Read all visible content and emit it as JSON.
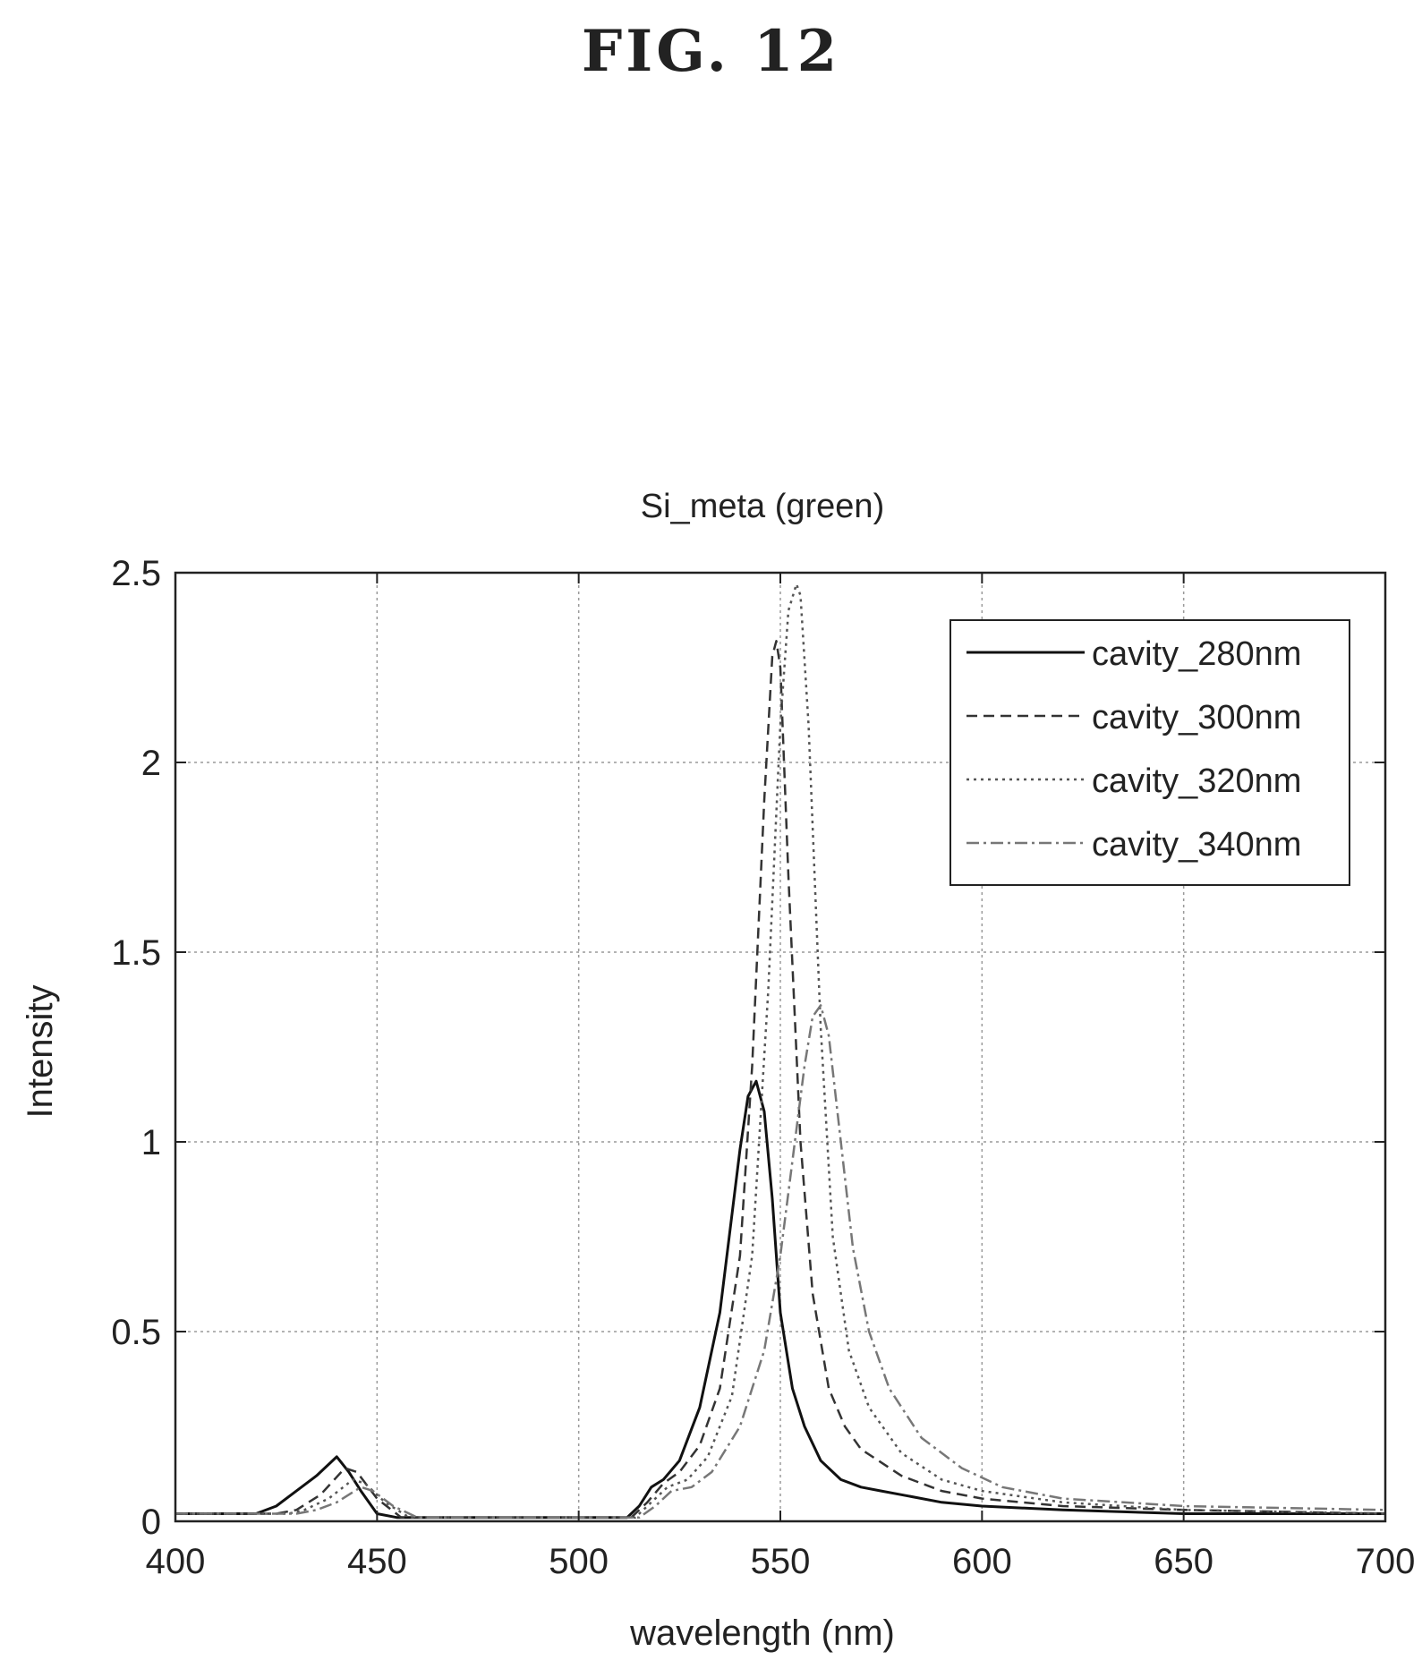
{
  "figure_label": "FIG. 12",
  "chart_data": {
    "type": "line",
    "title": "Si_meta (green)",
    "xlabel": "wavelength (nm)",
    "ylabel": "Intensity",
    "xlim": [
      400,
      700
    ],
    "ylim": [
      0,
      2.5
    ],
    "xticks": [
      400,
      450,
      500,
      550,
      600,
      650,
      700
    ],
    "xtick_labels": [
      "400",
      "450",
      "500",
      "550",
      "600",
      "650",
      "700"
    ],
    "yticks": [
      0,
      0.5,
      1,
      1.5,
      2,
      2.5
    ],
    "ytick_labels": [
      "0",
      "0.5",
      "1",
      "1.5",
      "2",
      "2.5"
    ],
    "grid": true,
    "legend_position": "top-right",
    "series": [
      {
        "name": "cavity_280nm",
        "style": "solid",
        "color": "#111111",
        "x": [
          400,
          420,
          425,
          430,
          435,
          440,
          443,
          446,
          450,
          455,
          500,
          512,
          515,
          518,
          521,
          525,
          530,
          535,
          540,
          542,
          544,
          546,
          548,
          550,
          553,
          556,
          560,
          565,
          570,
          575,
          580,
          590,
          600,
          620,
          650,
          700
        ],
        "y": [
          0.02,
          0.02,
          0.04,
          0.08,
          0.12,
          0.17,
          0.13,
          0.08,
          0.02,
          0.01,
          0.01,
          0.01,
          0.04,
          0.09,
          0.11,
          0.16,
          0.3,
          0.55,
          0.98,
          1.12,
          1.16,
          1.08,
          0.85,
          0.55,
          0.35,
          0.25,
          0.16,
          0.11,
          0.09,
          0.08,
          0.07,
          0.05,
          0.04,
          0.03,
          0.02,
          0.02
        ]
      },
      {
        "name": "cavity_300nm",
        "style": "dashed",
        "color": "#333333",
        "x": [
          400,
          425,
          430,
          436,
          442,
          445,
          450,
          456,
          500,
          513,
          517,
          521,
          525,
          530,
          535,
          540,
          543,
          546,
          548,
          549,
          550,
          552,
          555,
          558,
          562,
          566,
          570,
          580,
          590,
          600,
          620,
          650,
          700
        ],
        "y": [
          0.02,
          0.02,
          0.03,
          0.07,
          0.14,
          0.13,
          0.06,
          0.01,
          0.01,
          0.01,
          0.05,
          0.1,
          0.13,
          0.2,
          0.35,
          0.7,
          1.2,
          1.9,
          2.28,
          2.32,
          2.25,
          1.7,
          1.0,
          0.6,
          0.35,
          0.25,
          0.19,
          0.12,
          0.08,
          0.06,
          0.04,
          0.03,
          0.02
        ]
      },
      {
        "name": "cavity_320nm",
        "style": "dotted",
        "color": "#555555",
        "x": [
          400,
          428,
          432,
          438,
          444,
          447,
          452,
          458,
          500,
          514,
          518,
          522,
          527,
          532,
          538,
          543,
          547,
          550,
          552,
          554,
          555,
          557,
          560,
          563,
          567,
          572,
          580,
          590,
          600,
          620,
          650,
          700
        ],
        "y": [
          0.02,
          0.02,
          0.03,
          0.06,
          0.11,
          0.1,
          0.05,
          0.01,
          0.01,
          0.01,
          0.05,
          0.09,
          0.11,
          0.17,
          0.33,
          0.7,
          1.4,
          2.1,
          2.4,
          2.47,
          2.44,
          2.1,
          1.3,
          0.75,
          0.45,
          0.3,
          0.18,
          0.11,
          0.08,
          0.05,
          0.03,
          0.02
        ]
      },
      {
        "name": "cavity_340nm",
        "style": "dashdot",
        "color": "#777777",
        "x": [
          400,
          430,
          435,
          440,
          446,
          449,
          454,
          460,
          500,
          515,
          519,
          523,
          528,
          533,
          540,
          546,
          550,
          553,
          556,
          558,
          560,
          562,
          565,
          568,
          572,
          577,
          585,
          595,
          605,
          620,
          650,
          700
        ],
        "y": [
          0.02,
          0.02,
          0.03,
          0.05,
          0.09,
          0.08,
          0.04,
          0.01,
          0.01,
          0.01,
          0.04,
          0.08,
          0.09,
          0.13,
          0.25,
          0.45,
          0.7,
          0.95,
          1.2,
          1.33,
          1.36,
          1.28,
          1.0,
          0.72,
          0.5,
          0.35,
          0.22,
          0.14,
          0.09,
          0.06,
          0.04,
          0.03
        ]
      }
    ]
  }
}
